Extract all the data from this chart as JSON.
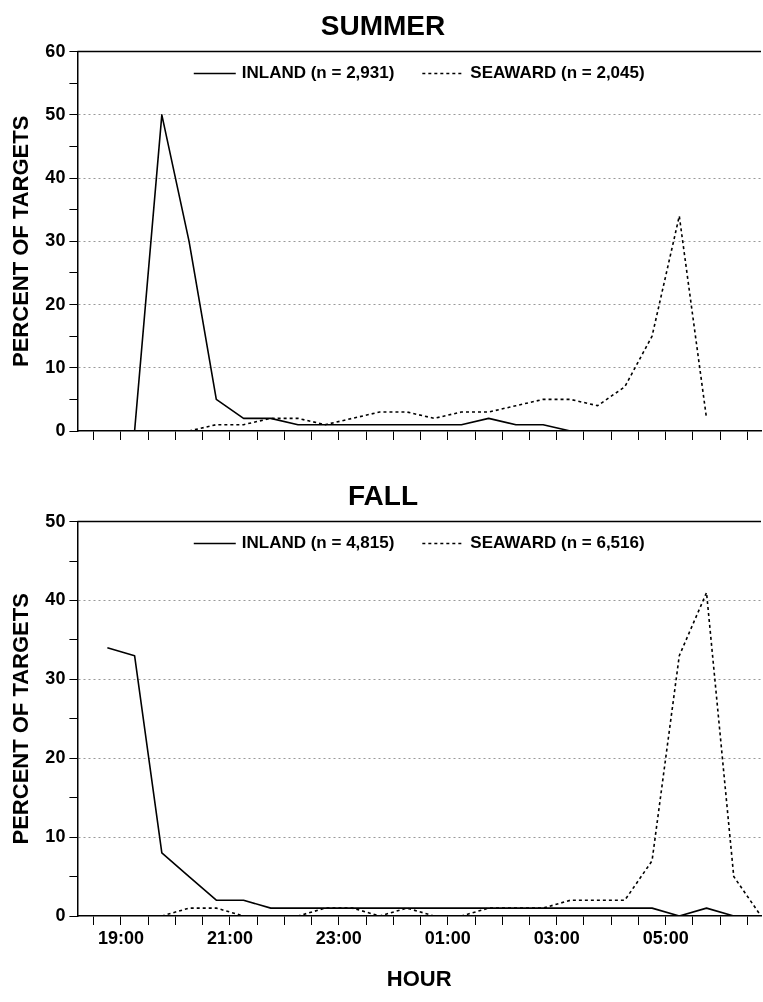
{
  "chart_data": [
    {
      "type": "line",
      "title": "SUMMER",
      "ylabel": "PERCENT OF TARGETS",
      "xlim": [
        "2000-01-01T18:12",
        "2000-01-02T06:45"
      ],
      "ylim": [
        0,
        60
      ],
      "xticks": [
        {
          "value": "2000-01-01T18:30",
          "label": null
        },
        {
          "value": "2000-01-01T19:00",
          "label": null
        },
        {
          "value": "2000-01-01T19:30",
          "label": null
        },
        {
          "value": "2000-01-01T20:00",
          "label": null
        },
        {
          "value": "2000-01-01T20:30",
          "label": null
        },
        {
          "value": "2000-01-01T21:00",
          "label": null
        },
        {
          "value": "2000-01-01T21:30",
          "label": null
        },
        {
          "value": "2000-01-01T22:00",
          "label": null
        },
        {
          "value": "2000-01-01T22:30",
          "label": null
        },
        {
          "value": "2000-01-01T23:00",
          "label": null
        },
        {
          "value": "2000-01-01T23:30",
          "label": null
        },
        {
          "value": "2000-01-02T00:00",
          "label": null
        },
        {
          "value": "2000-01-02T00:30",
          "label": null
        },
        {
          "value": "2000-01-02T01:00",
          "label": null
        },
        {
          "value": "2000-01-02T01:30",
          "label": null
        },
        {
          "value": "2000-01-02T02:00",
          "label": null
        },
        {
          "value": "2000-01-02T02:30",
          "label": null
        },
        {
          "value": "2000-01-02T03:00",
          "label": null
        },
        {
          "value": "2000-01-02T03:30",
          "label": null
        },
        {
          "value": "2000-01-02T04:00",
          "label": null
        },
        {
          "value": "2000-01-02T04:30",
          "label": null
        },
        {
          "value": "2000-01-02T05:00",
          "label": null
        },
        {
          "value": "2000-01-02T05:30",
          "label": null
        },
        {
          "value": "2000-01-02T06:00",
          "label": null
        },
        {
          "value": "2000-01-02T06:30",
          "label": null
        }
      ],
      "yticks": [
        0,
        {
          "value": 5,
          "label": null
        },
        10,
        {
          "value": 15,
          "label": null
        },
        20,
        {
          "value": 25,
          "label": null
        },
        30,
        {
          "value": 35,
          "label": null
        },
        40,
        {
          "value": 45,
          "label": null
        },
        50,
        {
          "value": 55,
          "label": null
        },
        60
      ],
      "tick_labels": "y",
      "grid": "y",
      "legend": "top",
      "marker": "none",
      "series": [
        {
          "name": "INLAND (n = 2,931)",
          "color": "#000000",
          "line_style": "solid",
          "x": [
            "2000-01-01T19:15",
            "2000-01-01T19:45",
            "2000-01-01T20:15",
            "2000-01-01T20:45",
            "2000-01-01T21:15",
            "2000-01-01T21:45",
            "2000-01-01T22:15",
            "2000-01-01T22:45",
            "2000-01-01T23:15",
            "2000-01-01T23:45",
            "2000-01-02T00:15",
            "2000-01-02T00:45",
            "2000-01-02T01:15",
            "2000-01-02T01:45",
            "2000-01-02T02:15",
            "2000-01-02T02:45",
            "2000-01-02T03:15"
          ],
          "values": [
            0,
            50,
            30,
            5,
            2,
            2,
            1,
            1,
            1,
            1,
            1,
            1,
            1,
            2,
            1,
            1,
            0
          ]
        },
        {
          "name": "SEAWARD (n = 2,045)",
          "color": "#000000",
          "line_style": "dashed",
          "x": [
            "2000-01-01T20:15",
            "2000-01-01T20:45",
            "2000-01-01T21:15",
            "2000-01-01T21:45",
            "2000-01-01T22:15",
            "2000-01-01T22:45",
            "2000-01-01T23:15",
            "2000-01-01T23:45",
            "2000-01-02T00:15",
            "2000-01-02T00:45",
            "2000-01-02T01:15",
            "2000-01-02T01:45",
            "2000-01-02T02:15",
            "2000-01-02T02:45",
            "2000-01-02T03:15",
            "2000-01-02T03:45",
            "2000-01-02T04:15",
            "2000-01-02T04:45",
            "2000-01-02T05:15",
            "2000-01-02T05:45"
          ],
          "values": [
            0,
            1,
            1,
            2,
            2,
            1,
            2,
            3,
            3,
            2,
            3,
            3,
            4,
            5,
            5,
            4,
            7,
            15,
            34,
            2
          ]
        }
      ]
    },
    {
      "type": "line",
      "title": "FALL",
      "xlabel": "HOUR",
      "ylabel": "PERCENT OF TARGETS",
      "xlim": [
        "2000-01-01T18:12",
        "2000-01-02T06:45"
      ],
      "ylim": [
        0,
        50
      ],
      "xticks": [
        {
          "value": "2000-01-01T18:30",
          "label": null
        },
        {
          "value": "2000-01-01T19:00",
          "label": "19:00"
        },
        {
          "value": "2000-01-01T19:30",
          "label": null
        },
        {
          "value": "2000-01-01T20:00",
          "label": null
        },
        {
          "value": "2000-01-01T20:30",
          "label": null
        },
        {
          "value": "2000-01-01T21:00",
          "label": "21:00"
        },
        {
          "value": "2000-01-01T21:30",
          "label": null
        },
        {
          "value": "2000-01-01T22:00",
          "label": null
        },
        {
          "value": "2000-01-01T22:30",
          "label": null
        },
        {
          "value": "2000-01-01T23:00",
          "label": "23:00"
        },
        {
          "value": "2000-01-01T23:30",
          "label": null
        },
        {
          "value": "2000-01-02T00:00",
          "label": null
        },
        {
          "value": "2000-01-02T00:30",
          "label": null
        },
        {
          "value": "2000-01-02T01:00",
          "label": "01:00"
        },
        {
          "value": "2000-01-02T01:30",
          "label": null
        },
        {
          "value": "2000-01-02T02:00",
          "label": null
        },
        {
          "value": "2000-01-02T02:30",
          "label": null
        },
        {
          "value": "2000-01-02T03:00",
          "label": "03:00"
        },
        {
          "value": "2000-01-02T03:30",
          "label": null
        },
        {
          "value": "2000-01-02T04:00",
          "label": null
        },
        {
          "value": "2000-01-02T04:30",
          "label": null
        },
        {
          "value": "2000-01-02T05:00",
          "label": "05:00"
        },
        {
          "value": "2000-01-02T05:30",
          "label": null
        },
        {
          "value": "2000-01-02T06:00",
          "label": null
        },
        {
          "value": "2000-01-02T06:30",
          "label": null
        }
      ],
      "yticks": [
        0,
        {
          "value": 5,
          "label": null
        },
        10,
        {
          "value": 15,
          "label": null
        },
        20,
        {
          "value": 25,
          "label": null
        },
        30,
        {
          "value": 35,
          "label": null
        },
        40,
        {
          "value": 45,
          "label": null
        },
        50
      ],
      "grid": "y",
      "legend": "top",
      "marker": "none",
      "series": [
        {
          "name": "INLAND (n = 4,815)",
          "color": "#000000",
          "line_style": "solid",
          "x": [
            "2000-01-01T18:45",
            "2000-01-01T19:15",
            "2000-01-01T19:45",
            "2000-01-01T20:15",
            "2000-01-01T20:45",
            "2000-01-01T21:15",
            "2000-01-01T21:45",
            "2000-01-01T22:15",
            "2000-01-01T22:45",
            "2000-01-01T23:15",
            "2000-01-01T23:45",
            "2000-01-02T00:15",
            "2000-01-02T00:45",
            "2000-01-02T01:15",
            "2000-01-02T01:45",
            "2000-01-02T02:15",
            "2000-01-02T02:45",
            "2000-01-02T03:15",
            "2000-01-02T03:45",
            "2000-01-02T04:15",
            "2000-01-02T04:45",
            "2000-01-02T05:15",
            "2000-01-02T05:45",
            "2000-01-02T06:15",
            "2000-01-02T06:45"
          ],
          "values": [
            34,
            33,
            8,
            5,
            2,
            2,
            1,
            1,
            1,
            1,
            1,
            1,
            1,
            1,
            1,
            1,
            1,
            1,
            1,
            1,
            1,
            0,
            1,
            0,
            0
          ]
        },
        {
          "name": "SEAWARD (n = 6,516)",
          "color": "#000000",
          "line_style": "dashed",
          "x": [
            "2000-01-01T19:45",
            "2000-01-01T20:15",
            "2000-01-01T20:45",
            "2000-01-01T21:15",
            "2000-01-01T21:45",
            "2000-01-01T22:15",
            "2000-01-01T22:45",
            "2000-01-01T23:15",
            "2000-01-01T23:45",
            "2000-01-02T00:15",
            "2000-01-02T00:45",
            "2000-01-02T01:15",
            "2000-01-02T01:45",
            "2000-01-02T02:15",
            "2000-01-02T02:45",
            "2000-01-02T03:15",
            "2000-01-02T03:45",
            "2000-01-02T04:15",
            "2000-01-02T04:45",
            "2000-01-02T05:15",
            "2000-01-02T05:45",
            "2000-01-02T06:15",
            "2000-01-02T06:45"
          ],
          "values": [
            0,
            1,
            1,
            0,
            0,
            0,
            1,
            1,
            0,
            1,
            0,
            0,
            1,
            1,
            1,
            2,
            2,
            2,
            7,
            33,
            41,
            5,
            0
          ]
        }
      ]
    }
  ]
}
